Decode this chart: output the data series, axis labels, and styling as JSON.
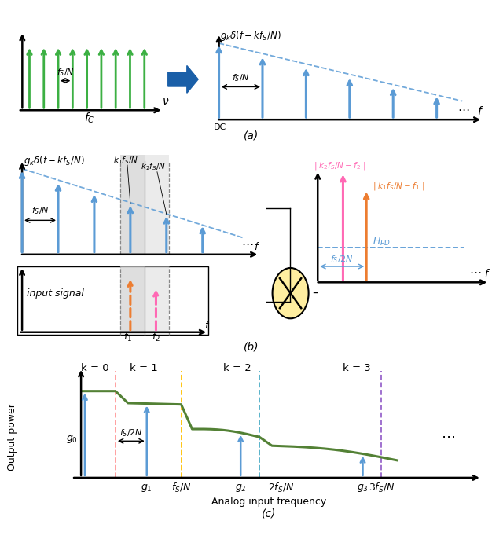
{
  "fig_width": 6.4,
  "fig_height": 6.91,
  "green_color": "#3cb043",
  "blue_color": "#5b9bd5",
  "orange_color": "#ed7d31",
  "pink_color": "#ff69b4",
  "teal_color": "#4bacc6",
  "purple_color": "#9966cc",
  "salmon_color": "#ff9999",
  "gold_color": "#ffc000",
  "plot_green": "#538135",
  "panel_a_label": "(a)",
  "panel_b_label": "(b)",
  "panel_c_label": "(c)"
}
